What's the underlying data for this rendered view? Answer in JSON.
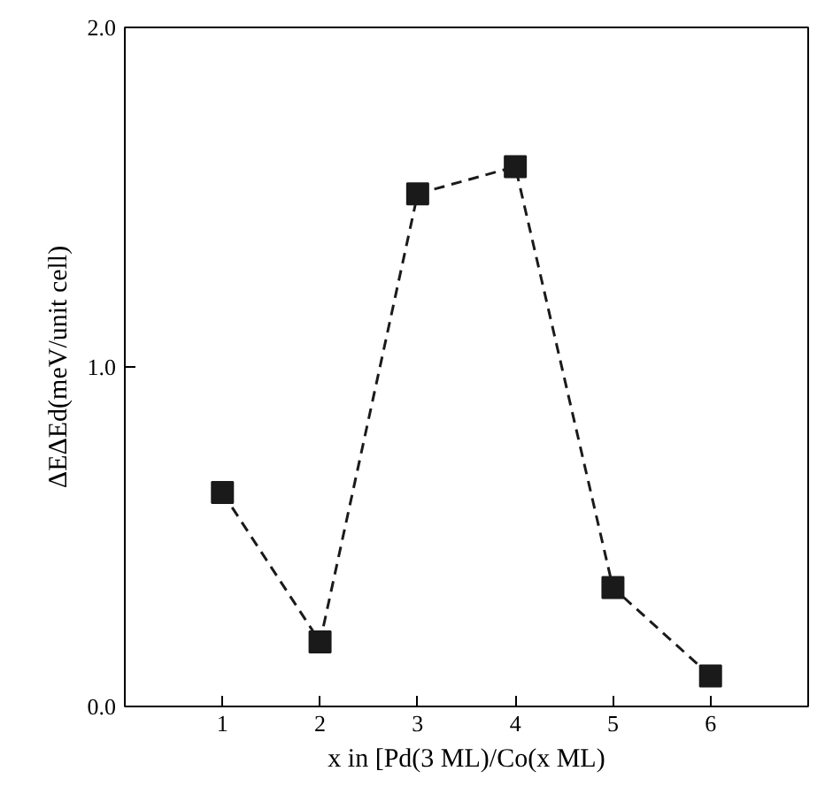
{
  "chart_data": {
    "type": "line",
    "xlabel": "x in [Pd(3 ML)/Co(x ML)",
    "ylabel": "ΔEΔEd(meV/unit cell)",
    "x": [
      1,
      2,
      3,
      4,
      5,
      6
    ],
    "series": [
      {
        "color": "#1a1a1a",
        "values": [
          0.63,
          0.19,
          1.51,
          1.59,
          0.35,
          0.09
        ]
      }
    ],
    "xlim": [
      0,
      7
    ],
    "ylim": [
      0,
      2
    ],
    "xticks": [
      1,
      2,
      3,
      4,
      5,
      6
    ],
    "yticks": [
      {
        "value": 0,
        "label": "0.0"
      },
      {
        "value": 1,
        "label": "1.0"
      },
      {
        "value": 2,
        "label": "2.0"
      }
    ],
    "marker": "square",
    "line_style": "dashed",
    "grid": false
  }
}
